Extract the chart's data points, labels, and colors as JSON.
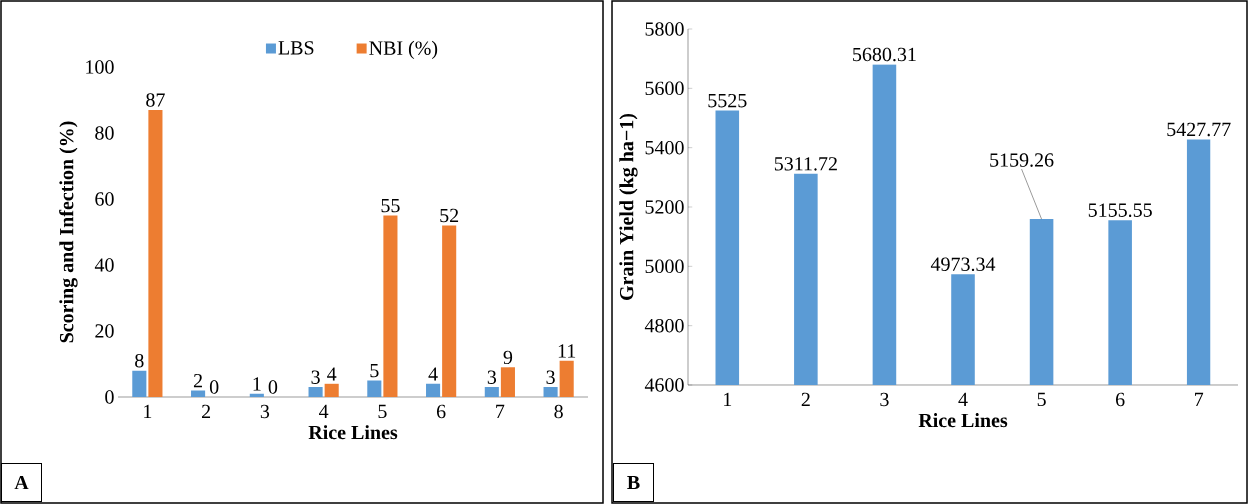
{
  "chart_data": [
    {
      "type": "bar",
      "xlabel": "Rice Lines",
      "ylabel": "Scoring and Infection (%)",
      "categories": [
        "1",
        "2",
        "3",
        "4",
        "5",
        "6",
        "7",
        "8"
      ],
      "series": [
        {
          "name": "LBS",
          "color": "#5b9bd5",
          "values": [
            8,
            2,
            1,
            3,
            5,
            4,
            3,
            3
          ],
          "value_labels": [
            "8",
            "2",
            "1",
            "3",
            "5",
            "4",
            "3",
            "3"
          ]
        },
        {
          "name": "NBI (%)",
          "color": "#ed7d31",
          "values": [
            87,
            0,
            0,
            4,
            55,
            52,
            9,
            11
          ],
          "value_labels": [
            "87",
            "0",
            "0",
            "4",
            "55",
            "52",
            "9",
            "11"
          ]
        }
      ],
      "ylim": [
        0,
        100
      ],
      "yticks": [
        0,
        20,
        40,
        60,
        80,
        100
      ],
      "legend": "top",
      "annotations": [
        "A"
      ]
    },
    {
      "type": "bar",
      "xlabel": "Rice Lines",
      "ylabel": "Grain Yield (kg ha−1)",
      "categories": [
        "1",
        "2",
        "3",
        "4",
        "5",
        "6",
        "7"
      ],
      "values": [
        5525,
        5311.72,
        5680.31,
        4973.34,
        5159.26,
        5155.55,
        5427.77
      ],
      "value_labels": [
        "5525",
        "5311.72",
        "5680.31",
        "4973.34",
        "5159.26",
        "5155.55",
        "5427.77"
      ],
      "color": "#5b9bd5",
      "ylim": [
        4600,
        5800
      ],
      "yticks": [
        4600,
        4800,
        5000,
        5200,
        5400,
        5600,
        5800
      ],
      "annotations": [
        "B"
      ]
    }
  ]
}
